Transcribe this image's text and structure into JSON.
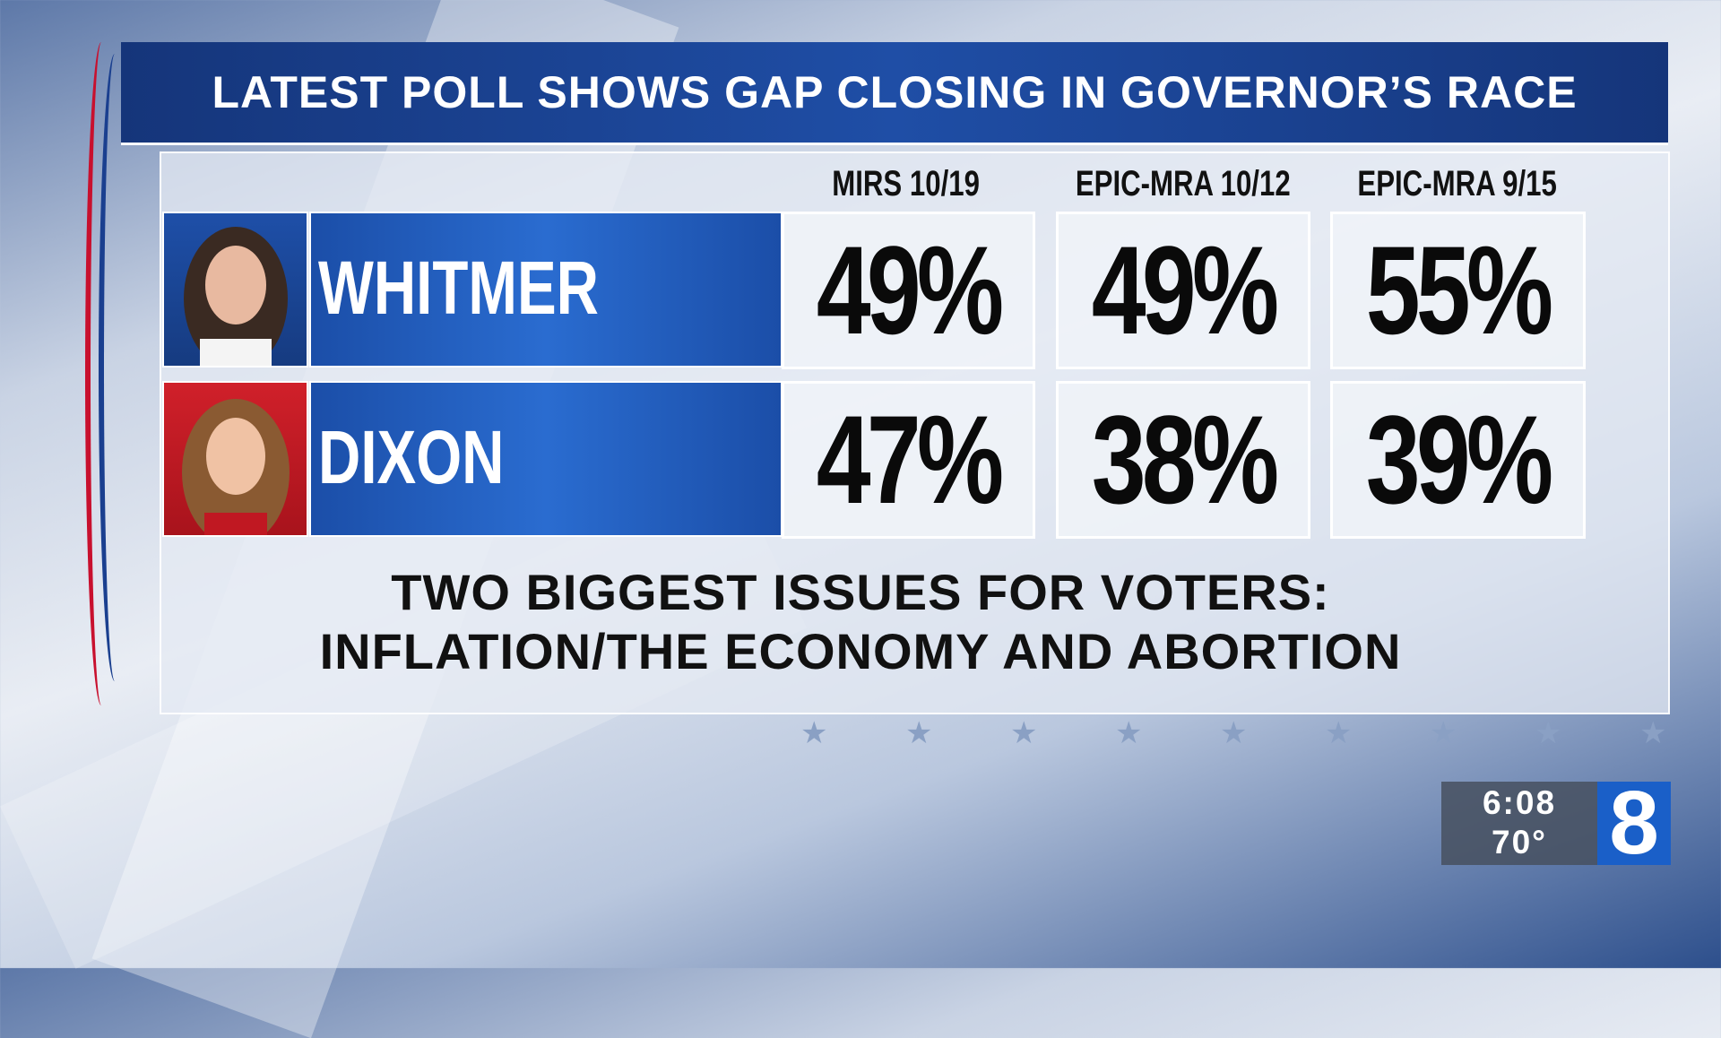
{
  "header": {
    "title": "LATEST POLL SHOWS GAP CLOSING IN GOVERNOR’S RACE"
  },
  "table": {
    "columns": [
      "MIRS 10/19",
      "EPIC-MRA 10/12",
      "EPIC-MRA 9/15"
    ],
    "rows": [
      {
        "name": "WHITMER",
        "values": [
          "49%",
          "49%",
          "55%"
        ]
      },
      {
        "name": "DIXON",
        "values": [
          "47%",
          "38%",
          "39%"
        ]
      }
    ]
  },
  "footer": {
    "lines": [
      "TWO BIGGEST ISSUES FOR VOTERS:",
      "INFLATION/THE ECONOMY AND ABORTION"
    ]
  },
  "bug": {
    "time": "6:08",
    "temperature": "70°",
    "channel": "8"
  }
}
